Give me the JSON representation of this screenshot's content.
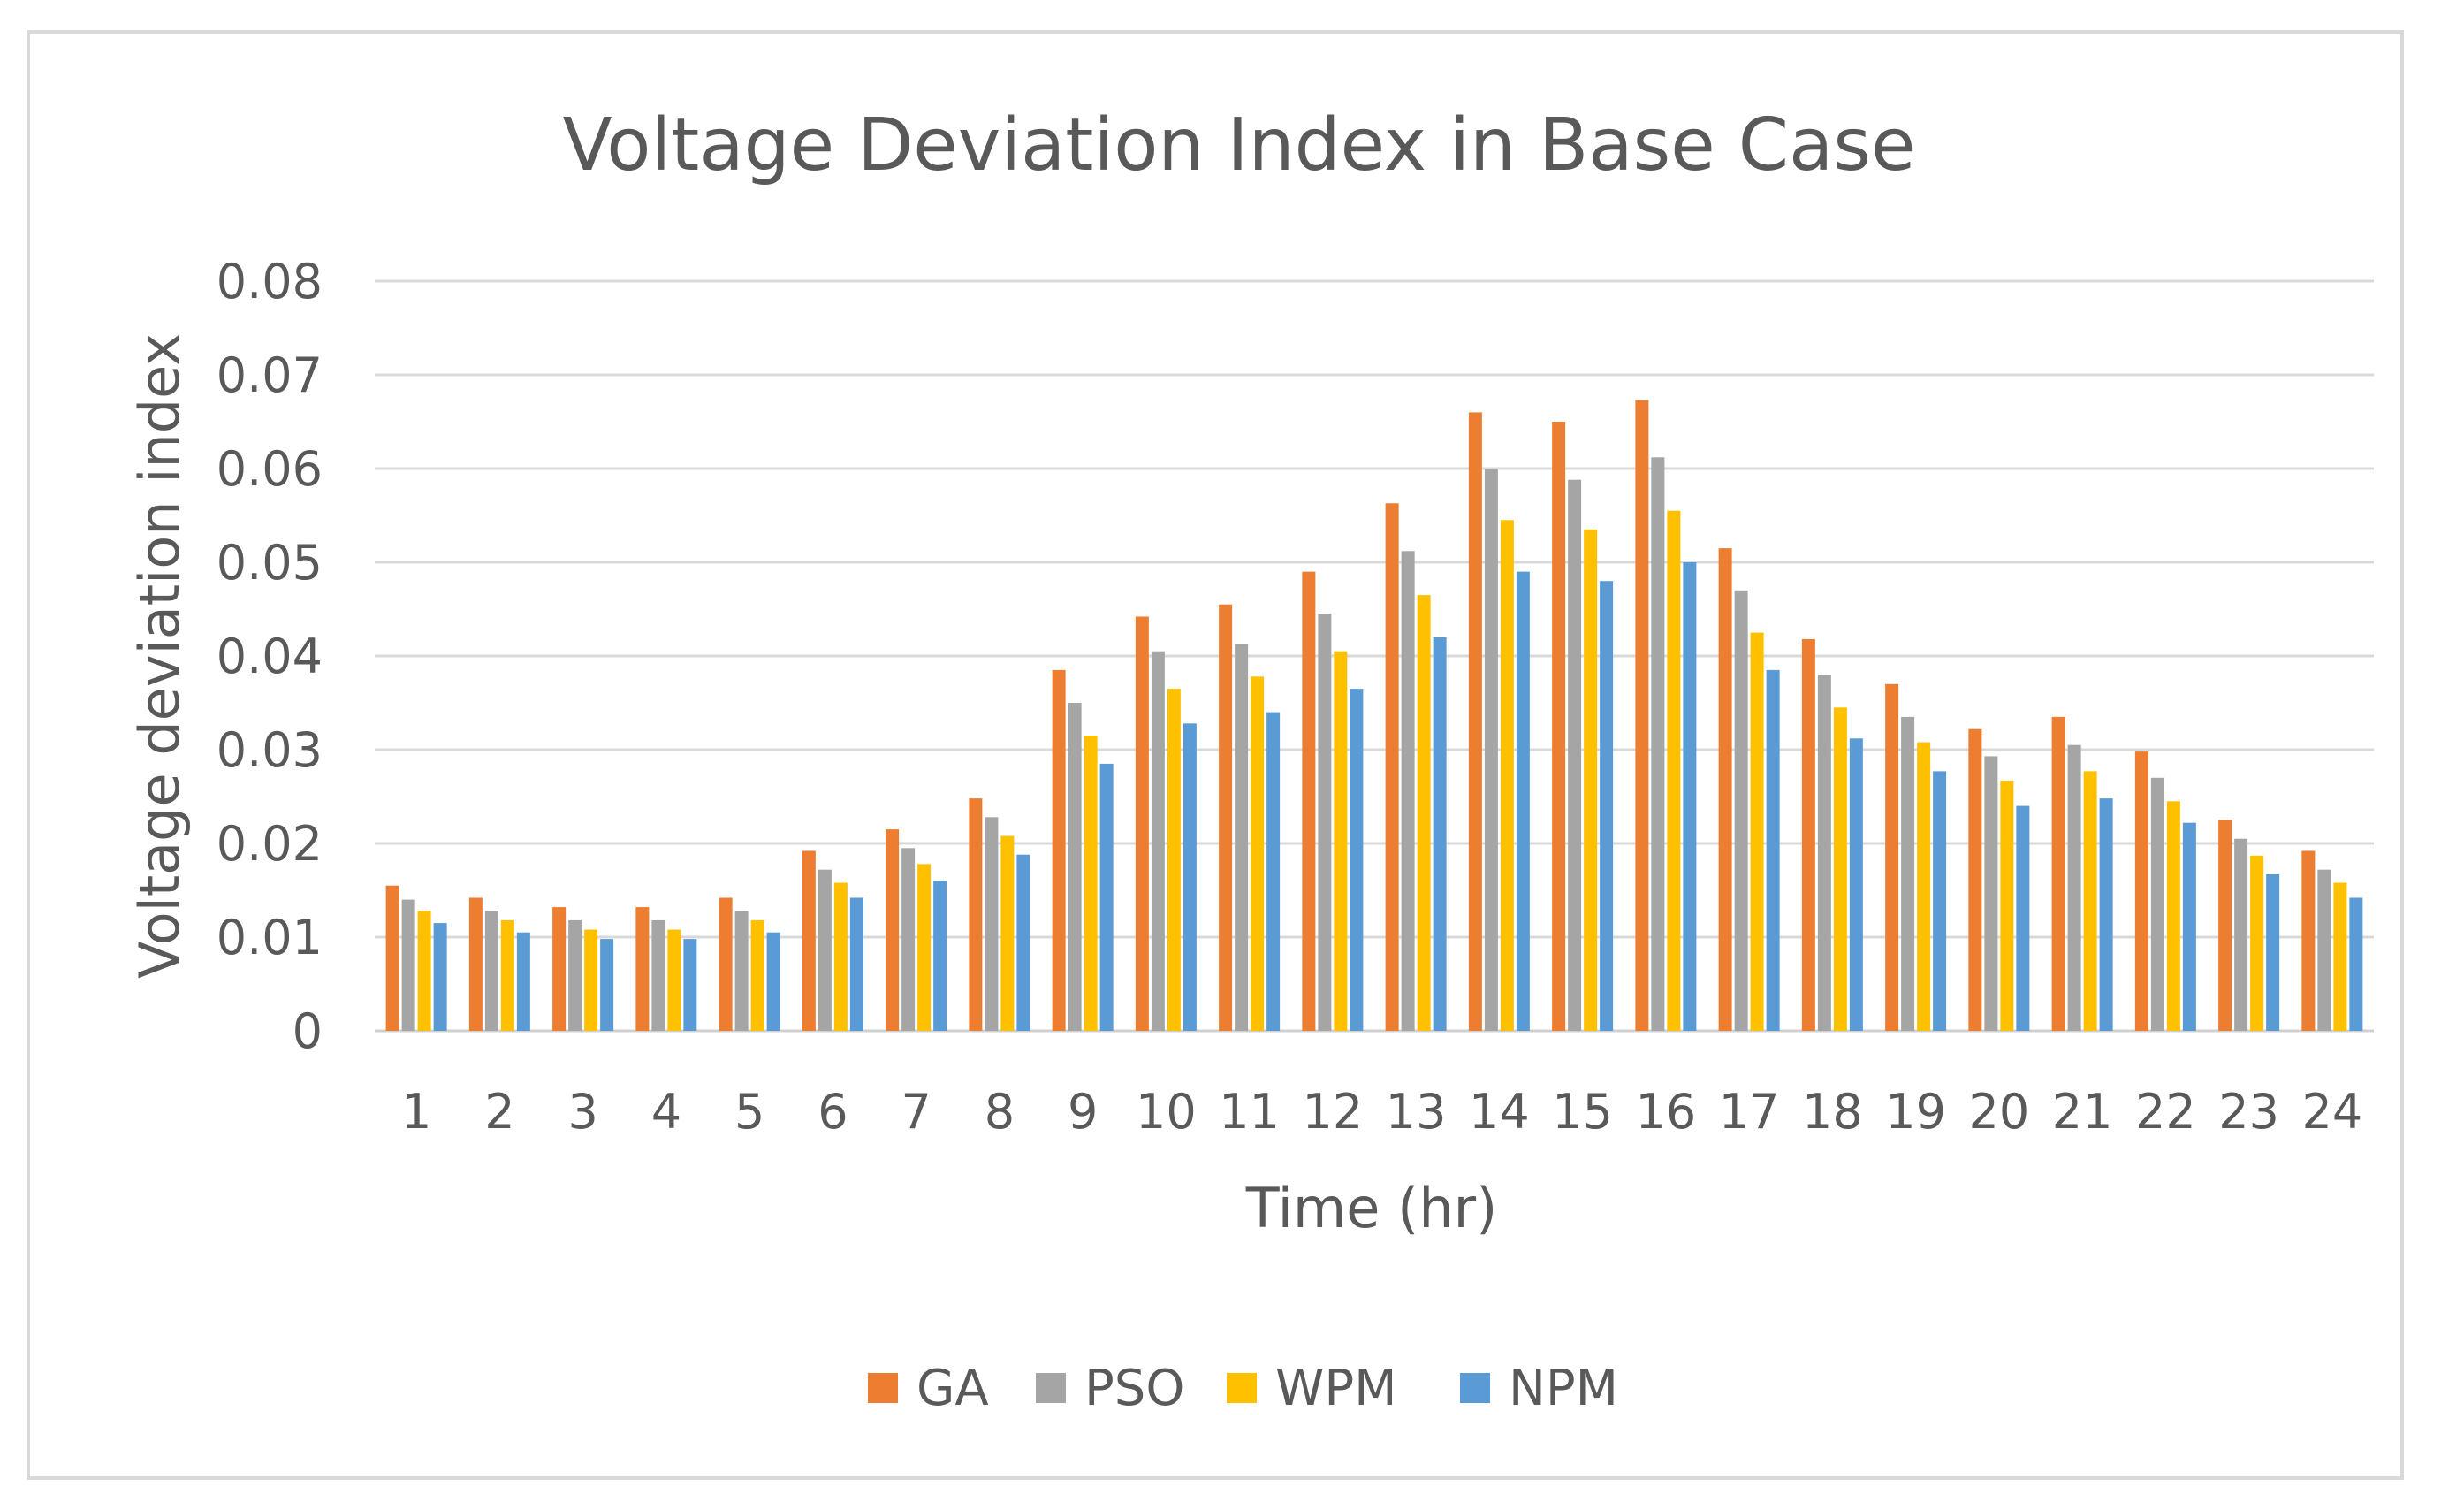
{
  "chart_data": {
    "type": "bar",
    "title": "Voltage Deviation Index in Base Case",
    "xlabel": "Time (hr)",
    "ylabel": "Voltage deviation index",
    "ylim": [
      0,
      0.08
    ],
    "yticks": [
      "0",
      "0.01",
      "0.02",
      "0.03",
      "0.04",
      "0.05",
      "0.06",
      "0.07",
      "0.08"
    ],
    "grid": true,
    "legend_position": "bottom",
    "categories": [
      "1",
      "2",
      "3",
      "4",
      "5",
      "6",
      "7",
      "8",
      "9",
      "10",
      "11",
      "12",
      "13",
      "14",
      "15",
      "16",
      "17",
      "18",
      "19",
      "20",
      "21",
      "22",
      "23",
      "24"
    ],
    "series": [
      {
        "name": "GA",
        "color": "#ed7d31",
        "values": [
          0.0155,
          0.0142,
          0.0132,
          0.0132,
          0.0142,
          0.0192,
          0.0215,
          0.0248,
          0.0385,
          0.0442,
          0.0455,
          0.049,
          0.0563,
          0.066,
          0.065,
          0.0673,
          0.0515,
          0.0418,
          0.037,
          0.0322,
          0.0335,
          0.0298,
          0.0225,
          0.0192
        ]
      },
      {
        "name": "PSO",
        "color": "#a5a5a5",
        "values": [
          0.014,
          0.0128,
          0.0118,
          0.0118,
          0.0128,
          0.0172,
          0.0195,
          0.0228,
          0.035,
          0.0405,
          0.0413,
          0.0445,
          0.0512,
          0.06,
          0.0588,
          0.0612,
          0.047,
          0.038,
          0.0335,
          0.0293,
          0.0305,
          0.027,
          0.0205,
          0.0172
        ]
      },
      {
        "name": "WPM",
        "color": "#ffc000",
        "values": [
          0.0128,
          0.0118,
          0.0108,
          0.0108,
          0.0118,
          0.0158,
          0.0178,
          0.0208,
          0.0315,
          0.0365,
          0.0378,
          0.0405,
          0.0465,
          0.0545,
          0.0535,
          0.0555,
          0.0425,
          0.0345,
          0.0308,
          0.0267,
          0.0277,
          0.0245,
          0.0187,
          0.0158
        ]
      },
      {
        "name": "NPM",
        "color": "#5b9bd5",
        "values": [
          0.0115,
          0.0105,
          0.0098,
          0.0098,
          0.0105,
          0.0142,
          0.016,
          0.0188,
          0.0285,
          0.0328,
          0.034,
          0.0365,
          0.042,
          0.049,
          0.048,
          0.05,
          0.0385,
          0.0312,
          0.0277,
          0.024,
          0.0248,
          0.0222,
          0.0167,
          0.0142
        ]
      }
    ]
  }
}
